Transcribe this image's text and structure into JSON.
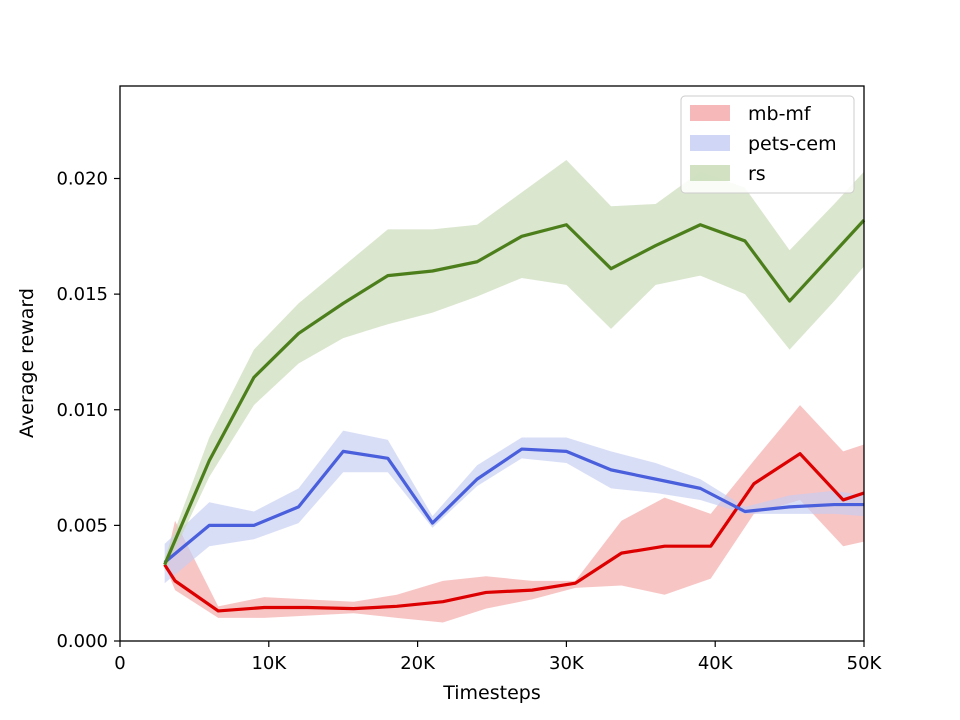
{
  "chart_data": {
    "type": "line",
    "title": "",
    "xlabel": "Timesteps",
    "ylabel": "Average reward",
    "xlim": [
      0,
      50000
    ],
    "ylim": [
      0,
      0.024
    ],
    "x_ticks": [
      {
        "value": 0,
        "label": "0"
      },
      {
        "value": 10000,
        "label": "10K"
      },
      {
        "value": 20000,
        "label": "20K"
      },
      {
        "value": 30000,
        "label": "30K"
      },
      {
        "value": 40000,
        "label": "40K"
      },
      {
        "value": 50000,
        "label": "50K"
      }
    ],
    "y_ticks": [
      {
        "value": 0.0,
        "label": "0.000"
      },
      {
        "value": 0.005,
        "label": "0.005"
      },
      {
        "value": 0.01,
        "label": "0.010"
      },
      {
        "value": 0.015,
        "label": "0.015"
      },
      {
        "value": 0.02,
        "label": "0.020"
      }
    ],
    "grid": false,
    "legend_position": "top-right",
    "series": [
      {
        "name": "mb-mf",
        "color": "#dd0000",
        "band_color": "#f4a6a6",
        "x": [
          3000,
          3700,
          6600,
          9700,
          12600,
          15700,
          18600,
          21700,
          24600,
          27700,
          30600,
          33700,
          36600,
          39700,
          42600,
          45700,
          48600,
          50000
        ],
        "y": [
          0.0033,
          0.0026,
          0.0013,
          0.00145,
          0.00145,
          0.0014,
          0.0015,
          0.0017,
          0.0021,
          0.0022,
          0.0025,
          0.0038,
          0.0041,
          0.0041,
          0.0068,
          0.0081,
          0.0061,
          0.0064
        ],
        "lower": [
          0.0033,
          0.0022,
          0.001,
          0.001,
          0.0011,
          0.0012,
          0.001,
          0.0008,
          0.0014,
          0.0018,
          0.0023,
          0.0024,
          0.002,
          0.0027,
          0.0055,
          0.0061,
          0.0041,
          0.0043
        ],
        "upper": [
          0.0033,
          0.0052,
          0.0015,
          0.0019,
          0.0018,
          0.0017,
          0.002,
          0.0026,
          0.0028,
          0.0026,
          0.0026,
          0.0052,
          0.0062,
          0.0055,
          0.0078,
          0.0102,
          0.0082,
          0.0085
        ]
      },
      {
        "name": "pets-cem",
        "color": "#4a5fdc",
        "band_color": "#c4ccf2",
        "x": [
          3000,
          6000,
          9000,
          12000,
          15000,
          18000,
          21000,
          24000,
          27000,
          30000,
          33000,
          36000,
          39000,
          42000,
          45000,
          48000,
          50000
        ],
        "y": [
          0.0034,
          0.005,
          0.005,
          0.0058,
          0.0082,
          0.0079,
          0.0051,
          0.007,
          0.0083,
          0.0082,
          0.0074,
          0.007,
          0.0066,
          0.0056,
          0.0058,
          0.0059,
          0.0059
        ],
        "lower": [
          0.0025,
          0.0041,
          0.0044,
          0.0051,
          0.0073,
          0.0073,
          0.0049,
          0.0067,
          0.0079,
          0.0077,
          0.0066,
          0.0064,
          0.0061,
          0.0055,
          0.0055,
          0.0055,
          0.0054
        ],
        "upper": [
          0.0042,
          0.006,
          0.0056,
          0.0066,
          0.0091,
          0.0087,
          0.0054,
          0.0076,
          0.0088,
          0.0088,
          0.0082,
          0.0077,
          0.007,
          0.0058,
          0.0063,
          0.0065,
          0.0063
        ]
      },
      {
        "name": "rs",
        "color": "#4c7f1c",
        "band_color": "#c6d9b3",
        "x": [
          3000,
          6000,
          9000,
          12000,
          15000,
          18000,
          21000,
          24000,
          27000,
          30000,
          33000,
          36000,
          39000,
          42000,
          45000,
          48000,
          50000
        ],
        "y": [
          0.0033,
          0.0078,
          0.0114,
          0.0133,
          0.0146,
          0.0158,
          0.016,
          0.0164,
          0.0175,
          0.018,
          0.0161,
          0.0171,
          0.018,
          0.0173,
          0.0147,
          0.0168,
          0.0182
        ],
        "lower": [
          0.003,
          0.0071,
          0.0102,
          0.012,
          0.0131,
          0.0137,
          0.0142,
          0.0149,
          0.0157,
          0.0154,
          0.0135,
          0.0154,
          0.0158,
          0.015,
          0.0126,
          0.0147,
          0.0162
        ],
        "upper": [
          0.0036,
          0.0088,
          0.0126,
          0.0146,
          0.0162,
          0.0178,
          0.0178,
          0.018,
          0.0194,
          0.0208,
          0.0188,
          0.0189,
          0.0203,
          0.0196,
          0.0169,
          0.0189,
          0.0203
        ]
      }
    ]
  }
}
